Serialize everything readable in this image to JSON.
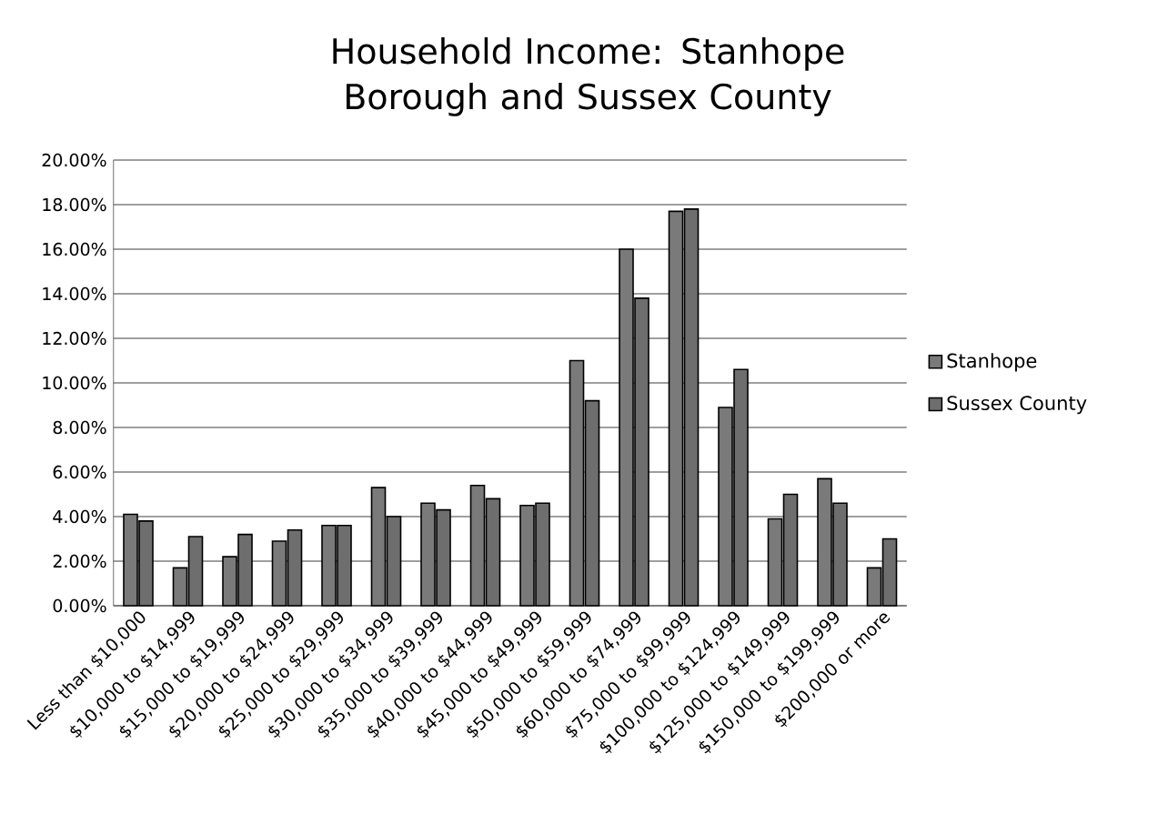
{
  "chart_data": {
    "type": "bar",
    "title": "Household Income: Stanhope Borough and Sussex County",
    "categories": [
      "Less than $10,000",
      "$10,000 to $14,999",
      "$15,000 to $19,999",
      "$20,000 to $24,999",
      "$25,000 to $29,999",
      "$30,000 to $34,999",
      "$35,000 to $39,999",
      "$40,000 to $44,999",
      "$45,000 to $49,999",
      "$50,000 to $59,999",
      "$60,000 to $74,999",
      "$75,000 to $99,999",
      "$100,000 to $124,999",
      "$125,000 to $149,999",
      "$150,000 to $199,999",
      "$200,000 or more"
    ],
    "series": [
      {
        "name": "Stanhope",
        "color": "#7a7a7a",
        "values": [
          4.1,
          1.7,
          2.2,
          2.9,
          3.6,
          5.3,
          4.6,
          5.4,
          4.5,
          11.0,
          16.0,
          17.7,
          8.9,
          3.9,
          5.7,
          1.7
        ]
      },
      {
        "name": "Sussex County",
        "color": "#6e6e6e",
        "values": [
          3.8,
          3.1,
          3.2,
          3.4,
          3.6,
          4.0,
          4.3,
          4.8,
          4.6,
          9.2,
          13.8,
          17.8,
          10.6,
          5.0,
          4.6,
          3.0
        ]
      }
    ],
    "ylim": [
      0,
      20
    ],
    "yticks": [
      {
        "value": 0,
        "label": "0.00%"
      },
      {
        "value": 2,
        "label": "2.00%"
      },
      {
        "value": 4,
        "label": "4.00%"
      },
      {
        "value": 6,
        "label": "6.00%"
      },
      {
        "value": 8,
        "label": "8.00%"
      },
      {
        "value": 10,
        "label": "10.00%"
      },
      {
        "value": 12,
        "label": "12.00%"
      },
      {
        "value": 14,
        "label": "14.00%"
      },
      {
        "value": 16,
        "label": "16.00%"
      },
      {
        "value": 18,
        "label": "18.00%"
      },
      {
        "value": 20,
        "label": "20.00%"
      }
    ],
    "grid": "y",
    "legend": "right"
  }
}
